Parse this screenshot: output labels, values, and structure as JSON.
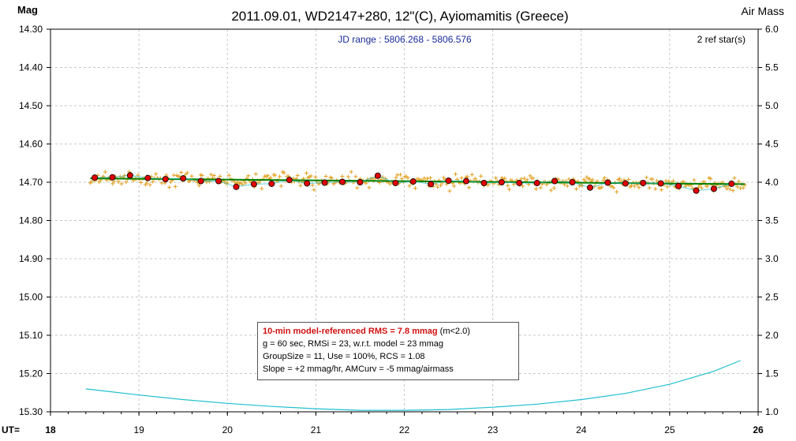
{
  "title": "2011.09.01, WD2147+280, 12\"(C), Ayiomamitis (Greece)",
  "left_axis_label": "Mag",
  "right_axis_label": "Air Mass",
  "x_axis_prefix": "UT=",
  "jd_range": "JD range : 5806.268 - 5806.576",
  "ref_stars": "2 ref star(s)",
  "info_box": {
    "rms_line": "10-min model-referenced RMS = 7.8 mmag",
    "rms_condition": "(m<2.0)",
    "line2": "g = 60 sec, RMSi = 23, w.r.t. model = 23 mmag",
    "line3": "GroupSize = 11, Use = 100%, RCS = 1.08",
    "line4": "Slope = +2 mmag/hr, AMCurv = -5 mmag/airmass"
  },
  "colors": {
    "raw_points": "#e0a020",
    "group_points": "#e00000",
    "model_line": "#008000",
    "airmass_curve": "#20c0d0",
    "grid": "#c8c8c8"
  },
  "chart_data": {
    "type": "scatter",
    "xlim": [
      18,
      26
    ],
    "ylim_mag": [
      14.3,
      15.3
    ],
    "ylim_airmass": [
      1.0,
      6.0
    ],
    "y_inverted": true,
    "x_ticks": [
      "18",
      "19",
      "20",
      "21",
      "22",
      "23",
      "24",
      "25",
      "26"
    ],
    "y_ticks_mag": [
      "14.30",
      "14.40",
      "14.50",
      "14.60",
      "14.70",
      "14.80",
      "14.90",
      "15.00",
      "15.10",
      "15.20",
      "15.30"
    ],
    "y_ticks_airmass": [
      "6.0",
      "5.5",
      "5.0",
      "4.5",
      "4.0",
      "3.5",
      "3.0",
      "2.5",
      "2.0",
      "1.5",
      "1.0"
    ],
    "grid": true,
    "group_means": {
      "x": [
        18.5,
        18.7,
        18.9,
        19.1,
        19.3,
        19.5,
        19.7,
        19.9,
        20.1,
        20.3,
        20.5,
        20.7,
        20.9,
        21.1,
        21.3,
        21.5,
        21.7,
        21.9,
        22.1,
        22.3,
        22.5,
        22.7,
        22.9,
        23.1,
        23.3,
        23.5,
        23.7,
        23.9,
        24.1,
        24.3,
        24.5,
        24.7,
        24.9,
        25.1,
        25.3,
        25.5,
        25.7
      ],
      "y": [
        14.688,
        14.687,
        14.682,
        14.689,
        14.692,
        14.69,
        14.697,
        14.697,
        14.712,
        14.705,
        14.704,
        14.694,
        14.703,
        14.701,
        14.699,
        14.7,
        14.683,
        14.702,
        14.698,
        14.705,
        14.696,
        14.697,
        14.702,
        14.7,
        14.702,
        14.702,
        14.697,
        14.7,
        14.714,
        14.701,
        14.703,
        14.702,
        14.703,
        14.71,
        14.722,
        14.717,
        14.704
      ]
    },
    "model_line": {
      "x": [
        18.45,
        25.85
      ],
      "y": [
        14.69,
        14.705
      ]
    },
    "airmass_curve": {
      "x": [
        18.4,
        19.0,
        19.5,
        20.0,
        20.5,
        21.0,
        21.5,
        22.0,
        22.5,
        23.0,
        23.5,
        24.0,
        24.5,
        25.0,
        25.5,
        25.8
      ],
      "y": [
        1.3,
        1.22,
        1.16,
        1.11,
        1.07,
        1.04,
        1.02,
        1.02,
        1.03,
        1.06,
        1.1,
        1.16,
        1.24,
        1.36,
        1.53,
        1.67
      ]
    },
    "raw_point_count": 440,
    "raw_scatter_sigma": 0.023
  }
}
